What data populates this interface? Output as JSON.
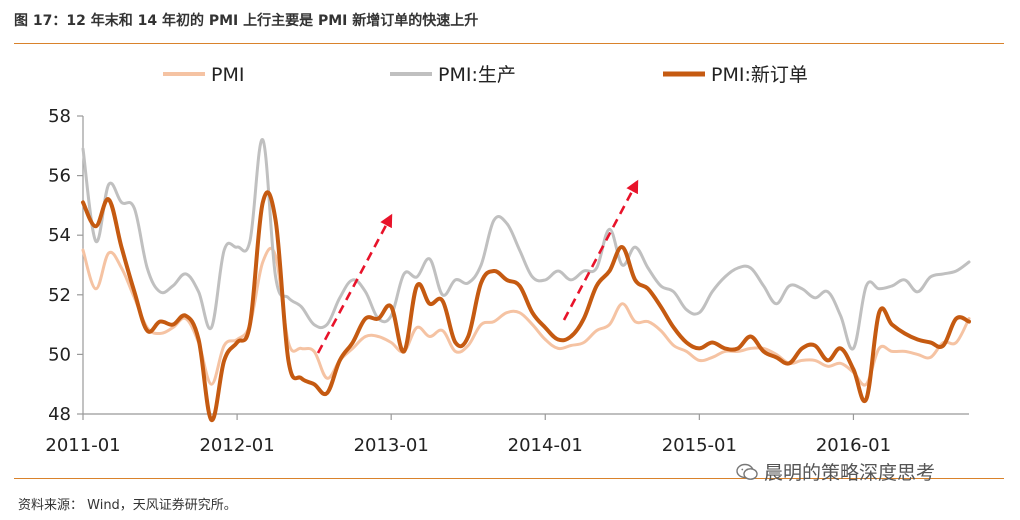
{
  "title": "图 17：12 年末和 14 年初的 PMI 上行主要是 PMI 新增订单的快速上升",
  "source": "资料来源：  Wind，天风证券研究所。",
  "watermark": "晨明的策略深度思考",
  "chart_data": {
    "type": "line",
    "ylim": [
      48,
      58
    ],
    "yticks": [
      48,
      50,
      52,
      54,
      56,
      58
    ],
    "xlim": [
      "2011-01",
      "2016-10"
    ],
    "xticks": [
      "2011-01",
      "2012-01",
      "2013-01",
      "2014-01",
      "2015-01",
      "2016-01"
    ],
    "legend_position": "top",
    "x": [
      "2011-01",
      "2011-02",
      "2011-03",
      "2011-04",
      "2011-05",
      "2011-06",
      "2011-07",
      "2011-08",
      "2011-09",
      "2011-10",
      "2011-11",
      "2011-12",
      "2012-01",
      "2012-02",
      "2012-03",
      "2012-04",
      "2012-05",
      "2012-06",
      "2012-07",
      "2012-08",
      "2012-09",
      "2012-10",
      "2012-11",
      "2012-12",
      "2013-01",
      "2013-02",
      "2013-03",
      "2013-04",
      "2013-05",
      "2013-06",
      "2013-07",
      "2013-08",
      "2013-09",
      "2013-10",
      "2013-11",
      "2013-12",
      "2014-01",
      "2014-02",
      "2014-03",
      "2014-04",
      "2014-05",
      "2014-06",
      "2014-07",
      "2014-08",
      "2014-09",
      "2014-10",
      "2014-11",
      "2014-12",
      "2015-01",
      "2015-02",
      "2015-03",
      "2015-04",
      "2015-05",
      "2015-06",
      "2015-07",
      "2015-08",
      "2015-09",
      "2015-10",
      "2015-11",
      "2015-12",
      "2016-01",
      "2016-02",
      "2016-03",
      "2016-04",
      "2016-05",
      "2016-06",
      "2016-07",
      "2016-08",
      "2016-09",
      "2016-10"
    ],
    "series": [
      {
        "name": "PMI",
        "color": "#f5c3a3",
        "width": 3,
        "values": [
          53.5,
          52.2,
          53.4,
          52.9,
          51.9,
          50.9,
          50.7,
          50.9,
          51.2,
          50.4,
          49.0,
          50.3,
          50.5,
          51.0,
          53.1,
          53.3,
          50.4,
          50.2,
          50.1,
          49.2,
          49.8,
          50.2,
          50.6,
          50.6,
          50.4,
          50.1,
          50.9,
          50.6,
          50.8,
          50.1,
          50.3,
          51.0,
          51.1,
          51.4,
          51.4,
          51.0,
          50.5,
          50.2,
          50.3,
          50.4,
          50.8,
          51.0,
          51.7,
          51.1,
          51.1,
          50.8,
          50.3,
          50.1,
          49.8,
          49.9,
          50.1,
          50.1,
          50.2,
          50.2,
          50.0,
          49.7,
          49.8,
          49.8,
          49.6,
          49.7,
          49.4,
          49.0,
          50.2,
          50.1,
          50.1,
          50.0,
          49.9,
          50.4,
          50.4,
          51.2
        ]
      },
      {
        "name": "PMI:生产",
        "color": "#c0c0c0",
        "width": 3,
        "values": [
          56.9,
          53.8,
          55.7,
          55.1,
          54.9,
          52.9,
          52.1,
          52.3,
          52.7,
          52.1,
          50.9,
          53.5,
          53.6,
          53.8,
          57.2,
          52.6,
          51.9,
          51.6,
          51.0,
          51.0,
          51.9,
          52.5,
          52.1,
          51.2,
          51.3,
          52.7,
          52.6,
          53.2,
          52.0,
          52.5,
          52.4,
          53.0,
          54.5,
          54.4,
          53.5,
          52.6,
          52.5,
          52.8,
          52.5,
          52.8,
          52.9,
          54.2,
          53.0,
          53.6,
          52.9,
          52.3,
          52.1,
          51.5,
          51.4,
          52.1,
          52.6,
          52.9,
          52.9,
          52.3,
          51.7,
          52.3,
          52.2,
          51.9,
          52.1,
          51.3,
          50.2,
          52.3,
          52.2,
          52.3,
          52.5,
          52.1,
          52.6,
          52.7,
          52.8,
          53.1
        ]
      },
      {
        "name": "PMI:新订单",
        "color": "#c55a11",
        "width": 4,
        "values": [
          55.1,
          54.3,
          55.2,
          53.6,
          52.1,
          50.8,
          51.1,
          51.0,
          51.3,
          50.5,
          47.8,
          49.8,
          50.4,
          51.0,
          55.1,
          54.5,
          49.8,
          49.2,
          49.0,
          48.7,
          49.8,
          50.4,
          51.2,
          51.2,
          51.6,
          50.1,
          52.3,
          51.7,
          51.8,
          50.4,
          50.6,
          52.4,
          52.8,
          52.5,
          52.3,
          51.4,
          50.9,
          50.5,
          50.6,
          51.2,
          52.3,
          52.8,
          53.6,
          52.5,
          52.2,
          51.6,
          50.9,
          50.4,
          50.2,
          50.4,
          50.2,
          50.2,
          50.6,
          50.1,
          49.9,
          49.7,
          50.2,
          50.3,
          49.8,
          50.2,
          49.5,
          48.5,
          51.4,
          51.0,
          50.7,
          50.5,
          50.4,
          50.3,
          51.2,
          51.1
        ]
      }
    ]
  }
}
